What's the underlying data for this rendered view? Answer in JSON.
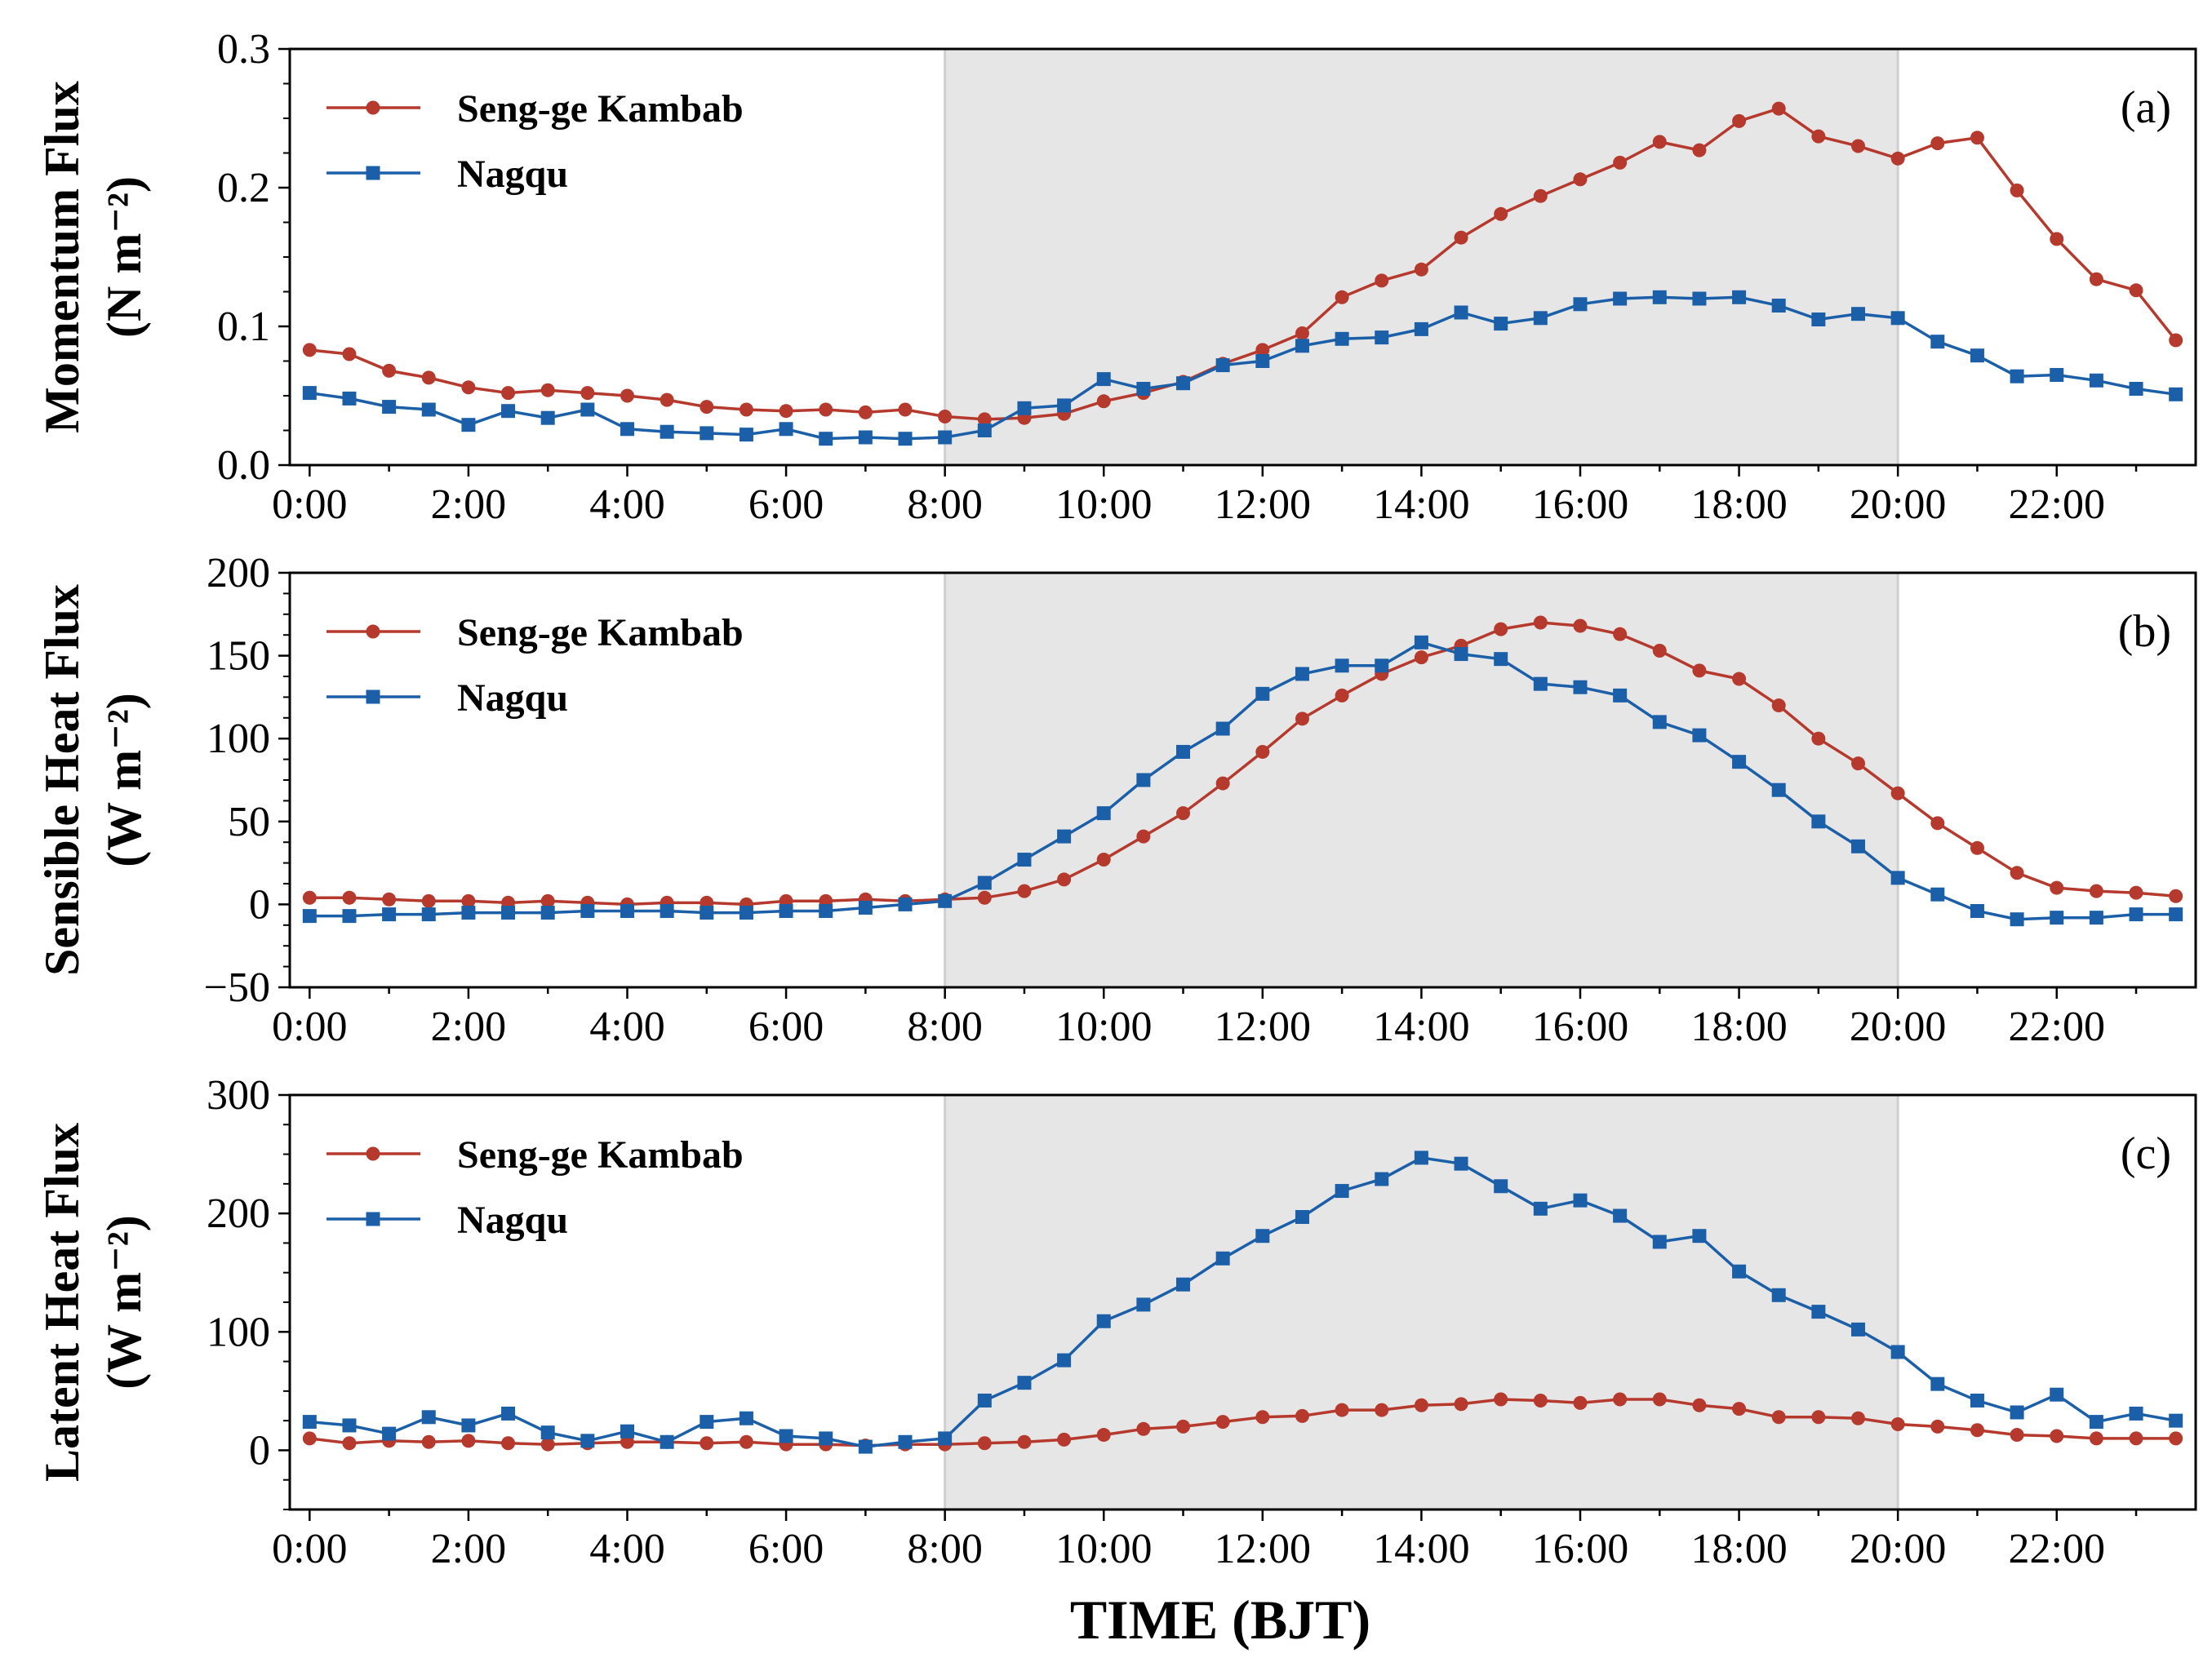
{
  "figure": {
    "x_axis_title": "TIME (BJT)",
    "x_tick_labels": [
      "0:00",
      "2:00",
      "4:00",
      "6:00",
      "8:00",
      "10:00",
      "12:00",
      "14:00",
      "16:00",
      "18:00",
      "20:00",
      "22:00"
    ],
    "shaded_period": "8:00–20:00",
    "colors": {
      "seng": "#b5392c",
      "nagqu": "#1b5fa8",
      "shade": "#e6e6e6"
    }
  },
  "chart_data": [
    {
      "type": "line",
      "panel": "(a)",
      "ylabel_line1": "Momentum Flux",
      "ylabel_line2": "(N m⁻²)",
      "ylim": [
        0,
        0.3
      ],
      "yticks": [
        0,
        0.1,
        0.2,
        0.3
      ],
      "ytick_labels": [
        "0.0",
        "0.1",
        "0.2",
        "0.3"
      ],
      "x_hours": [
        0,
        0.5,
        1,
        1.5,
        2,
        2.5,
        3,
        3.5,
        4,
        4.5,
        5,
        5.5,
        6,
        6.5,
        7,
        7.5,
        8,
        8.5,
        9,
        9.5,
        10,
        10.5,
        11,
        11.5,
        12,
        12.5,
        13,
        13.5,
        14,
        14.5,
        15,
        15.5,
        16,
        16.5,
        17,
        17.5,
        18,
        18.5,
        19,
        19.5,
        20,
        20.5,
        21,
        21.5,
        22,
        22.5,
        23,
        23.5
      ],
      "series": [
        {
          "name": "Seng-ge Kambab",
          "values": [
            0.083,
            0.08,
            0.068,
            0.063,
            0.056,
            0.052,
            0.054,
            0.052,
            0.05,
            0.047,
            0.042,
            0.04,
            0.039,
            0.04,
            0.038,
            0.04,
            0.035,
            0.033,
            0.034,
            0.037,
            0.046,
            0.052,
            0.06,
            0.073,
            0.083,
            0.095,
            0.121,
            0.133,
            0.141,
            0.164,
            0.181,
            0.194,
            0.206,
            0.218,
            0.233,
            0.227,
            0.248,
            0.257,
            0.237,
            0.23,
            0.221,
            0.232,
            0.236,
            0.198,
            0.163,
            0.134,
            0.126,
            0.09
          ]
        },
        {
          "name": "Nagqu",
          "values": [
            0.052,
            0.048,
            0.042,
            0.04,
            0.029,
            0.039,
            0.034,
            0.04,
            0.026,
            0.024,
            0.023,
            0.022,
            0.026,
            0.019,
            0.02,
            0.019,
            0.02,
            0.025,
            0.041,
            0.043,
            0.062,
            0.055,
            0.059,
            0.072,
            0.075,
            0.086,
            0.091,
            0.092,
            0.098,
            0.11,
            0.102,
            0.106,
            0.116,
            0.12,
            0.121,
            0.12,
            0.121,
            0.115,
            0.105,
            0.109,
            0.106,
            0.089,
            0.079,
            0.064,
            0.065,
            0.061,
            0.055,
            0.051
          ]
        }
      ]
    },
    {
      "type": "line",
      "panel": "(b)",
      "ylabel_line1": "Sensible Heat Flux",
      "ylabel_line2": "(W m⁻²)",
      "ylim": [
        -50,
        200
      ],
      "yticks": [
        -50,
        0,
        50,
        100,
        150,
        200
      ],
      "ytick_labels": [
        "−50",
        "0",
        "50",
        "100",
        "150",
        "200"
      ],
      "x_hours": [
        0,
        0.5,
        1,
        1.5,
        2,
        2.5,
        3,
        3.5,
        4,
        4.5,
        5,
        5.5,
        6,
        6.5,
        7,
        7.5,
        8,
        8.5,
        9,
        9.5,
        10,
        10.5,
        11,
        11.5,
        12,
        12.5,
        13,
        13.5,
        14,
        14.5,
        15,
        15.5,
        16,
        16.5,
        17,
        17.5,
        18,
        18.5,
        19,
        19.5,
        20,
        20.5,
        21,
        21.5,
        22,
        22.5,
        23,
        23.5
      ],
      "series": [
        {
          "name": "Seng-ge Kambab",
          "values": [
            4,
            4,
            3,
            2,
            2,
            1,
            2,
            1,
            0,
            1,
            1,
            0,
            2,
            2,
            3,
            2,
            3,
            4,
            8,
            15,
            27,
            41,
            55,
            73,
            92,
            112,
            126,
            139,
            149,
            156,
            166,
            170,
            168,
            163,
            153,
            141,
            136,
            120,
            100,
            85,
            67,
            49,
            34,
            19,
            10,
            8,
            7,
            5
          ]
        },
        {
          "name": "Nagqu",
          "values": [
            -7,
            -7,
            -6,
            -6,
            -5,
            -5,
            -5,
            -4,
            -4,
            -4,
            -5,
            -5,
            -4,
            -4,
            -2,
            0,
            2,
            13,
            27,
            41,
            55,
            75,
            92,
            106,
            127,
            139,
            144,
            144,
            158,
            151,
            148,
            133,
            131,
            126,
            110,
            102,
            86,
            69,
            50,
            35,
            16,
            6,
            -4,
            -9,
            -8,
            -8,
            -6,
            -6
          ]
        }
      ]
    },
    {
      "type": "line",
      "panel": "(c)",
      "ylabel_line1": "Latent Heat Flux",
      "ylabel_line2": "(W m⁻²)",
      "ylim": [
        -50,
        300
      ],
      "yticks": [
        0,
        100,
        200,
        300
      ],
      "ytick_labels": [
        "0",
        "100",
        "200",
        "300"
      ],
      "x_hours": [
        0,
        0.5,
        1,
        1.5,
        2,
        2.5,
        3,
        3.5,
        4,
        4.5,
        5,
        5.5,
        6,
        6.5,
        7,
        7.5,
        8,
        8.5,
        9,
        9.5,
        10,
        10.5,
        11,
        11.5,
        12,
        12.5,
        13,
        13.5,
        14,
        14.5,
        15,
        15.5,
        16,
        16.5,
        17,
        17.5,
        18,
        18.5,
        19,
        19.5,
        20,
        20.5,
        21,
        21.5,
        22,
        22.5,
        23,
        23.5
      ],
      "series": [
        {
          "name": "Seng-ge Kambab",
          "values": [
            10,
            6,
            8,
            7,
            8,
            6,
            5,
            6,
            7,
            7,
            6,
            7,
            5,
            5,
            4,
            5,
            5,
            6,
            7,
            9,
            13,
            18,
            20,
            24,
            28,
            29,
            34,
            34,
            38,
            39,
            43,
            42,
            40,
            43,
            43,
            38,
            35,
            28,
            28,
            27,
            22,
            20,
            17,
            13,
            12,
            10,
            10,
            10
          ]
        },
        {
          "name": "Nagqu",
          "values": [
            24,
            21,
            14,
            28,
            21,
            31,
            15,
            8,
            16,
            7,
            24,
            27,
            12,
            10,
            3,
            7,
            10,
            42,
            57,
            76,
            109,
            123,
            140,
            162,
            181,
            197,
            219,
            229,
            247,
            242,
            223,
            204,
            211,
            198,
            176,
            181,
            151,
            131,
            117,
            102,
            83,
            56,
            42,
            32,
            47,
            24,
            31,
            25
          ]
        }
      ]
    }
  ]
}
